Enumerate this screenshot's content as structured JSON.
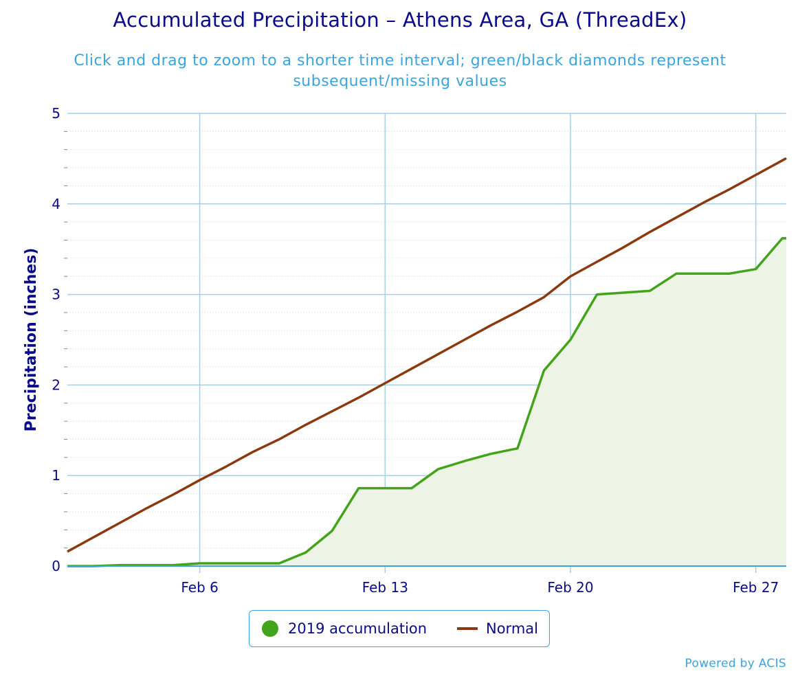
{
  "title": "Accumulated Precipitation – Athens Area, GA (ThreadEx)",
  "subtitle": "Click and drag to zoom to a shorter time interval; green/black diamonds represent subsequent/missing values",
  "credits": "Powered by ACIS",
  "colors": {
    "accumulation_line": "#43a31a",
    "accumulation_fill": "#edf4e6",
    "normal_line": "#8b3a0f",
    "grid": "#a9cfe8",
    "axis_text": "#0a0a8c",
    "accent": "#3aa5dc"
  },
  "chart_data": {
    "type": "line",
    "title": "Accumulated Precipitation – Athens Area, GA (ThreadEx)",
    "xlabel": "",
    "ylabel": "Precipitation (inches)",
    "ylim": [
      0,
      5
    ],
    "yticks": [
      "0",
      "1",
      "2",
      "3",
      "4",
      "5"
    ],
    "xticks": [
      "Feb 6",
      "Feb 13",
      "Feb 20",
      "Feb 27"
    ],
    "grid": true,
    "legend_position": "bottom-center",
    "x": [
      "2019-02-01",
      "2019-02-02",
      "2019-02-03",
      "2019-02-04",
      "2019-02-05",
      "2019-02-06",
      "2019-02-07",
      "2019-02-08",
      "2019-02-09",
      "2019-02-10",
      "2019-02-11",
      "2019-02-12",
      "2019-02-13",
      "2019-02-14",
      "2019-02-15",
      "2019-02-16",
      "2019-02-17",
      "2019-02-18",
      "2019-02-19",
      "2019-02-20",
      "2019-02-21",
      "2019-02-22",
      "2019-02-23",
      "2019-02-24",
      "2019-02-25",
      "2019-02-26",
      "2019-02-27",
      "2019-02-28"
    ],
    "series": [
      {
        "name": "2019 accumulation",
        "type": "area",
        "values": [
          0.0,
          0.0,
          0.01,
          0.01,
          0.01,
          0.03,
          0.03,
          0.03,
          0.03,
          0.15,
          0.39,
          0.86,
          0.86,
          0.86,
          1.07,
          1.16,
          1.24,
          1.3,
          2.16,
          2.5,
          3.0,
          3.02,
          3.04,
          3.23,
          3.23,
          3.23,
          3.28,
          3.62
        ]
      },
      {
        "name": "Normal",
        "type": "line",
        "values": [
          0.16,
          0.32,
          0.48,
          0.64,
          0.79,
          0.95,
          1.1,
          1.26,
          1.4,
          1.56,
          1.71,
          1.86,
          2.02,
          2.18,
          2.34,
          2.5,
          2.66,
          2.81,
          2.97,
          3.2,
          3.36,
          3.52,
          3.69,
          3.85,
          4.01,
          4.16,
          4.32,
          4.48
        ]
      }
    ]
  },
  "legend": [
    {
      "label": "2019 accumulation",
      "symbol": "circle"
    },
    {
      "label": "Normal",
      "symbol": "line"
    }
  ]
}
